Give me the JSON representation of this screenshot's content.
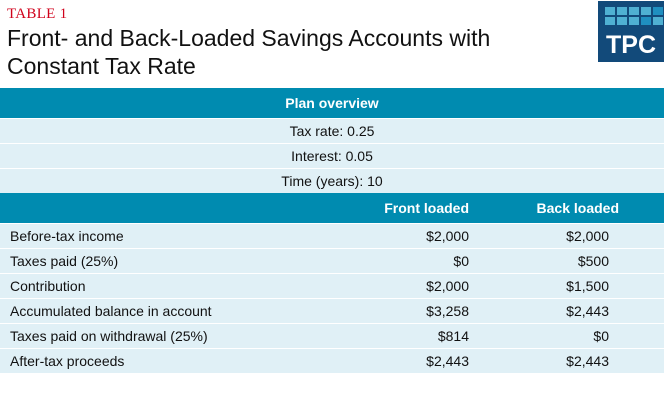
{
  "label": "TABLE 1",
  "title": "Front- and Back-Loaded Savings Accounts with Constant Tax Rate",
  "logo": {
    "text": "TPC"
  },
  "overview": {
    "heading": "Plan overview",
    "items": [
      "Tax rate: 0.25",
      "Interest: 0.05",
      "Time (years): 10"
    ]
  },
  "columns": [
    "",
    "Front loaded",
    "Back loaded"
  ],
  "rows": [
    [
      "Before-tax income",
      "$2,000",
      "$2,000"
    ],
    [
      "Taxes paid (25%)",
      "$0",
      "$500"
    ],
    [
      "Contribution",
      "$2,000",
      "$1,500"
    ],
    [
      "Accumulated balance in account",
      "$3,258",
      "$2,443"
    ],
    [
      "Taxes paid on withdrawal (25%)",
      "$814",
      "$0"
    ],
    [
      "After-tax proceeds",
      "$2,443",
      "$2,443"
    ]
  ]
}
